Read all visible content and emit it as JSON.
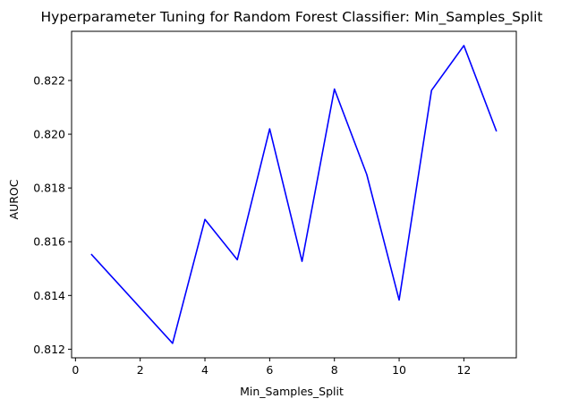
{
  "chart_data": {
    "type": "line",
    "title": "Hyperparameter Tuning for Random Forest Classifier: Min_Samples_Split",
    "xlabel": "Min_Samples_Split",
    "ylabel": "AUROC",
    "xlim": [
      -0.12,
      13.62
    ],
    "ylim": [
      0.81168,
      0.82383
    ],
    "xticks": [
      0,
      2,
      4,
      6,
      8,
      10,
      12
    ],
    "yticks": [
      0.812,
      0.814,
      0.816,
      0.818,
      0.82,
      0.822
    ],
    "xtick_labels": [
      "0",
      "2",
      "4",
      "6",
      "8",
      "10",
      "12"
    ],
    "ytick_labels": [
      "0.812",
      "0.814",
      "0.816",
      "0.818",
      "0.820",
      "0.822"
    ],
    "grid": false,
    "series": [
      {
        "color": "#0000ff",
        "x": [
          0.5,
          3,
          4,
          5,
          6,
          7,
          8,
          9,
          10,
          11,
          12,
          13
        ],
        "y": [
          0.81552,
          0.81222,
          0.81683,
          0.81533,
          0.8202,
          0.81527,
          0.82168,
          0.8185,
          0.81383,
          0.82163,
          0.8233,
          0.82013
        ]
      }
    ]
  }
}
